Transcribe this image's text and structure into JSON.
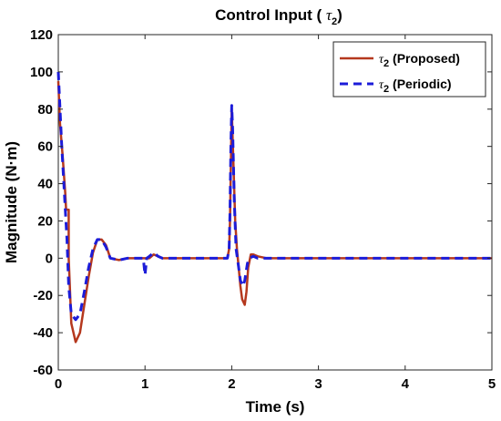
{
  "chart_data": {
    "type": "line",
    "title": {
      "prefix": "Control Input ( ",
      "symbol": "τ",
      "subscript": "2",
      "suffix": ")"
    },
    "xlabel": "Time (s)",
    "ylabel": "Magnitude (N·m)",
    "xlim": [
      0,
      5
    ],
    "ylim": [
      -60,
      120
    ],
    "xticks": [
      "0",
      "1",
      "2",
      "3",
      "4",
      "5"
    ],
    "yticks": [
      "-60",
      "-40",
      "-20",
      "0",
      "20",
      "40",
      "60",
      "80",
      "100",
      "120"
    ],
    "grid": false,
    "legend_position": "top-right",
    "series": [
      {
        "name": {
          "symbol": "τ",
          "subscript": "2",
          "text": " (Proposed)"
        },
        "color": "#b5381e",
        "style": "solid",
        "x": [
          0,
          0.02,
          0.05,
          0.08,
          0.09,
          0.12,
          0.12,
          0.15,
          0.2,
          0.25,
          0.3,
          0.35,
          0.4,
          0.45,
          0.5,
          0.55,
          0.6,
          0.7,
          0.8,
          0.9,
          1.0,
          1.05,
          1.1,
          1.15,
          1.2,
          1.3,
          1.5,
          1.7,
          1.9,
          1.95,
          1.97,
          1.98,
          1.99,
          2.0,
          2.02,
          2.04,
          2.06,
          2.08,
          2.1,
          2.12,
          2.15,
          2.17,
          2.19,
          2.22,
          2.25,
          2.3,
          2.4,
          2.6,
          3.0,
          4.0,
          5.0
        ],
        "y": [
          95,
          72,
          55,
          35,
          26,
          26,
          0,
          -35,
          -45,
          -40,
          -25,
          -10,
          3,
          10,
          10,
          7,
          0,
          -1,
          0,
          0,
          0,
          0,
          2,
          1,
          0,
          0,
          0,
          0,
          0,
          0,
          5,
          20,
          50,
          80,
          50,
          20,
          5,
          -5,
          -15,
          -22,
          -25,
          -18,
          -5,
          2,
          2,
          1,
          0,
          0,
          0,
          0,
          0
        ]
      },
      {
        "name": {
          "symbol": "τ",
          "subscript": "2",
          "text": " (Periodic)"
        },
        "color": "#1c1cd9",
        "style": "dashed",
        "x": [
          0,
          0.02,
          0.04,
          0.07,
          0.1,
          0.12,
          0.15,
          0.2,
          0.25,
          0.3,
          0.35,
          0.4,
          0.45,
          0.5,
          0.55,
          0.6,
          0.7,
          0.8,
          0.9,
          0.98,
          1.0,
          1.02,
          1.05,
          1.1,
          1.15,
          1.2,
          1.3,
          1.5,
          1.7,
          1.9,
          1.95,
          1.97,
          1.98,
          1.99,
          2.0,
          2.01,
          2.03,
          2.05,
          2.08,
          2.1,
          2.13,
          2.15,
          2.18,
          2.2,
          2.25,
          2.3,
          2.4,
          2.6,
          3.0,
          4.0,
          5.0
        ],
        "y": [
          100,
          80,
          60,
          35,
          10,
          -15,
          -30,
          -33,
          -30,
          -18,
          -5,
          5,
          10,
          10,
          6,
          0,
          -1,
          0,
          0,
          0,
          -9,
          0,
          1,
          3,
          1,
          0,
          0,
          0,
          0,
          0,
          0,
          5,
          25,
          60,
          82,
          70,
          30,
          5,
          -5,
          -12,
          -15,
          -12,
          -3,
          0,
          1,
          0,
          0,
          0,
          0,
          0,
          0
        ]
      }
    ]
  }
}
